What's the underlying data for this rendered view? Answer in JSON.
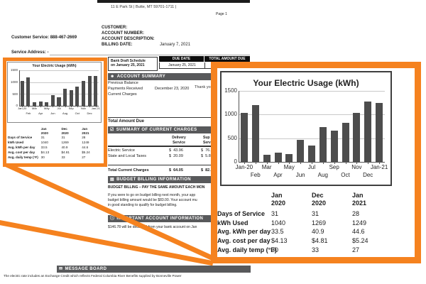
{
  "header": {
    "address_line": "11 E Park St | Butte, MT 59701-1711 |",
    "page_number": "Page 1",
    "customer_service": "Customer Service: 888-467-2669",
    "customer_label": "CUSTOMER:",
    "account_number_label": "ACCOUNT NUMBER:",
    "account_description_label": "ACCOUNT DESCRIPTION:",
    "billing_date_label": "BILLING DATE:",
    "billing_date_value": "January 7, 2021",
    "service_address_label": "Service Address: -"
  },
  "bank_draft": {
    "line1": "Bank Draft Schedule",
    "line2": "on January 25, 2021"
  },
  "due": {
    "due_date_header": "DUE DATE",
    "total_header": "TOTAL AMOUNT DUE",
    "due_date_value": "January 25, 2021",
    "total_value": ""
  },
  "account_summary": {
    "title": "ACCOUNT SUMMARY",
    "previous_balance": "Previous Balance",
    "payments_received": "Payments Received",
    "payments_date": "December 23, 2020",
    "thank_you": "Thank you",
    "current_charges": "Current Charges",
    "total_amount_due": "Total Amount Due"
  },
  "charges": {
    "title": "SUMMARY OF CURRENT CHARGES",
    "col_delivery": [
      "Delivery",
      "Service"
    ],
    "col_supply": [
      "Sup",
      "Serv"
    ],
    "rows": [
      {
        "label": "Electric Service",
        "delivery": "$  43.96",
        "supply": "$  76.9"
      },
      {
        "label": "State and Local Taxes",
        "delivery": "$  20.09",
        "supply": "$  5.80"
      }
    ],
    "total_label": "Total Current Charges",
    "total_delivery": "$  64.05",
    "total_supply": "$  82.7"
  },
  "budget": {
    "title": "BUDGET BILLING INFORMATION",
    "heading": "BUDGET BILLING – PAY THE SAME AMOUNT EACH MON",
    "lines": [
      "If you were to go on budget billing next month, your app",
      "budget billing amount would be $83.00. Your account mu",
      "in good standing to qualify for budget billing."
    ]
  },
  "important": {
    "title": "IMPORTANT ACCOUNT INFORMATION",
    "body": "$146.78 will be deducted from your bank account on Jan"
  },
  "message_board": {
    "title": "MESSAGE BOARD",
    "body": "The electric rate includes an Exchange Credit which reflects Federal Columbia River Benefits supplied by Bonneville Power"
  },
  "chart_data": {
    "type": "bar",
    "title": "Your Electric Usage (kWh)",
    "categories": [
      "Jan-20",
      "Feb",
      "Mar",
      "Apr",
      "May",
      "Jun",
      "Jul",
      "Aug",
      "Sep",
      "Oct",
      "Nov",
      "Dec",
      "Jan-21"
    ],
    "values": [
      1040,
      1200,
      150,
      190,
      165,
      460,
      350,
      730,
      660,
      820,
      1040,
      1269,
      1249
    ],
    "xlabel": "",
    "ylabel": "kWh",
    "ylim": [
      0,
      1500
    ],
    "yticks": [
      0,
      500,
      1000,
      1500
    ],
    "grid": true,
    "legend": false
  },
  "usage_table": {
    "columns": [
      [
        "Jan",
        "2020"
      ],
      [
        "Dec",
        "2020"
      ],
      [
        "Jan",
        "2021"
      ]
    ],
    "rows": [
      {
        "label": "Days of Service",
        "values": [
          "31",
          "31",
          "28"
        ]
      },
      {
        "label": "kWh Used",
        "values": [
          "1040",
          "1269",
          "1249"
        ]
      },
      {
        "label": "Avg. kWh per day",
        "values": [
          "33.5",
          "40.9",
          "44.6"
        ]
      },
      {
        "label": "Avg. cost per day",
        "values": [
          "$4.13",
          "$4.81",
          "$5.24"
        ]
      },
      {
        "label": "Avg. daily temp (°F)",
        "values": [
          "30",
          "33",
          "27"
        ]
      }
    ]
  },
  "colors": {
    "accent_orange": "#F5821F",
    "bar_gray": "#4d4d4d",
    "section_gray": "#58595B",
    "due_black": "#0d0d0d"
  }
}
